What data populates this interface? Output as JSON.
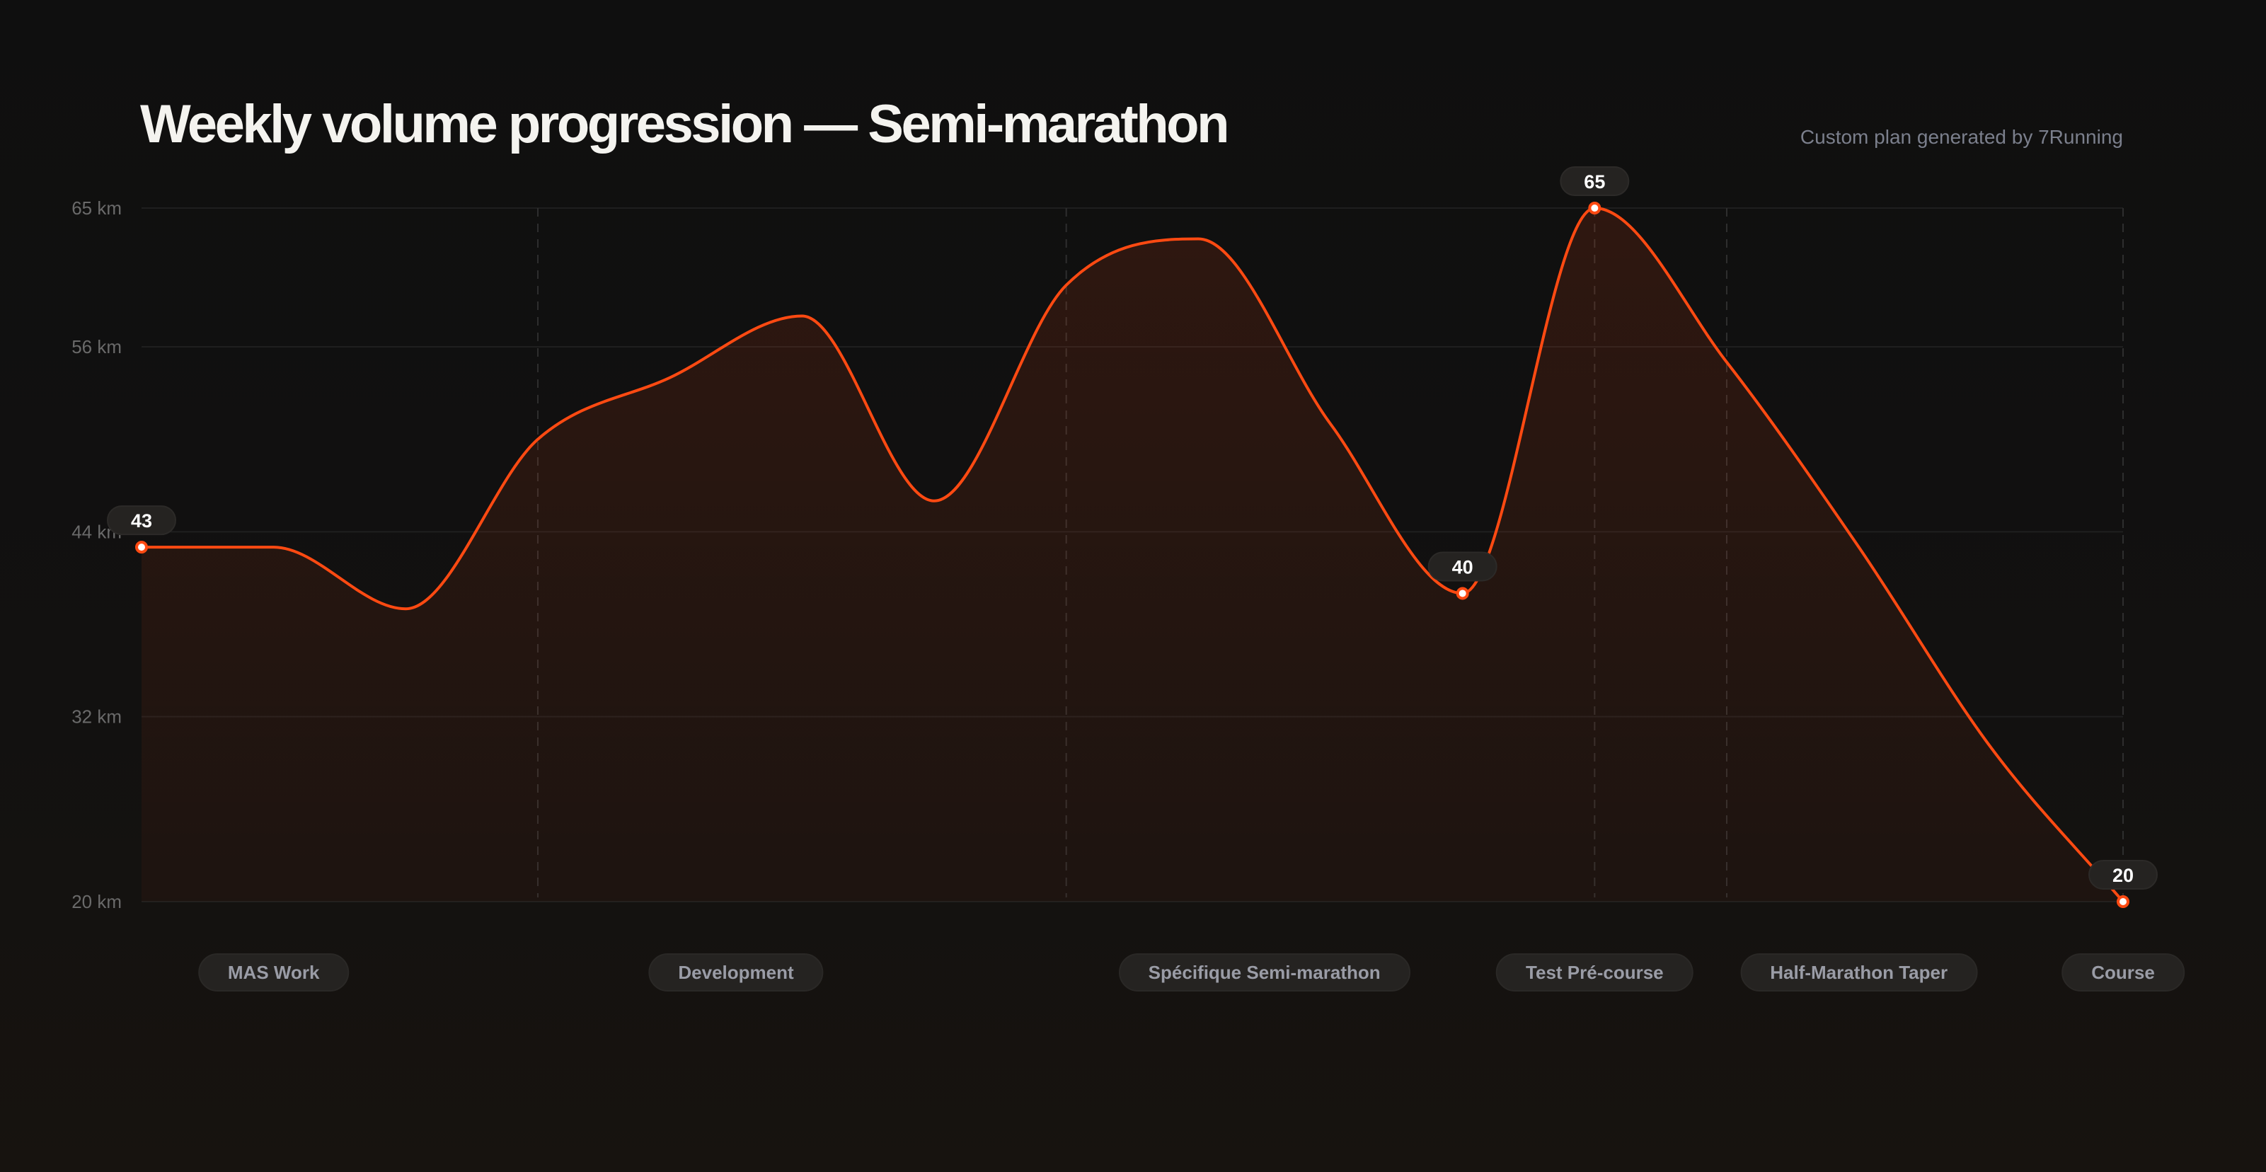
{
  "header": {
    "title": "Weekly volume progression — Semi-marathon",
    "subtitle": "Custom plan generated by 7Running"
  },
  "colors": {
    "line": "#ff4a12",
    "grid": "#1f1f1f",
    "divider": "#2e2e2e",
    "pill_bg": "#252321"
  },
  "chart_data": {
    "type": "area",
    "title": "Weekly volume progression — Semi-marathon",
    "xlabel": "",
    "ylabel": "km",
    "x": [
      1,
      2,
      3,
      4,
      5,
      6,
      7,
      8,
      9,
      10,
      11,
      12,
      13,
      14,
      15,
      16
    ],
    "values": [
      43,
      43,
      39,
      50,
      54,
      58,
      46,
      60,
      63,
      51,
      40,
      65,
      55,
      43,
      30,
      20
    ],
    "ylim": [
      20,
      65
    ],
    "yticks": [
      20,
      32,
      44,
      56,
      65
    ],
    "ytick_labels": [
      "20 km",
      "32 km",
      "44 km",
      "56 km",
      "65 km"
    ],
    "labeled_points": [
      {
        "week": 1,
        "label": "43"
      },
      {
        "week": 11,
        "label": "40"
      },
      {
        "week": 12,
        "label": "65"
      },
      {
        "week": 16,
        "label": "20"
      }
    ],
    "phase_dividers_before_week": [
      4,
      8,
      12,
      13,
      16
    ],
    "phases": [
      {
        "label": "MAS Work",
        "center_week": 2
      },
      {
        "label": "Development",
        "center_week": 5.5
      },
      {
        "label": "Spécifique Semi-marathon",
        "center_week": 9.5
      },
      {
        "label": "Test Pré-course",
        "center_week": 12
      },
      {
        "label": "Half-Marathon Taper",
        "center_week": 14
      },
      {
        "label": "Course",
        "center_week": 16
      }
    ],
    "grid": true,
    "legend": "none"
  }
}
